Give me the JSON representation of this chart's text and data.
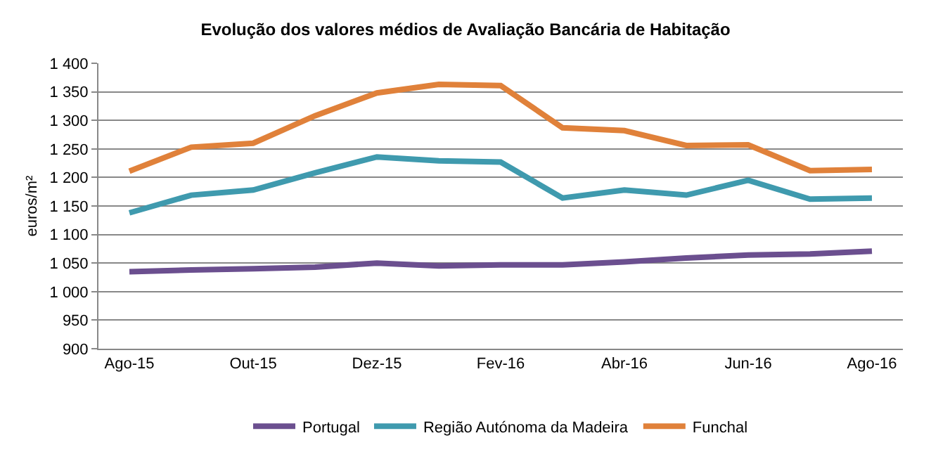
{
  "chart_data": {
    "type": "line",
    "title": "Evolução dos valores médios de Avaliação Bancária de Habitação",
    "ylabel": "euros/m²",
    "categories": [
      "Ago-15",
      null,
      "Out-15",
      null,
      "Dez-15",
      null,
      "Fev-16",
      null,
      "Abr-16",
      null,
      "Jun-16",
      null,
      "Ago-16"
    ],
    "series": [
      {
        "name": "Portugal",
        "color": "#6b4f8f",
        "values": [
          1035,
          1038,
          1040,
          1043,
          1050,
          1045,
          1047,
          1047,
          1052,
          1059,
          1064,
          1066,
          1071
        ]
      },
      {
        "name": "Região Autónoma da Madeira",
        "color": "#3f9aae",
        "values": [
          1138,
          1169,
          1178,
          1208,
          1236,
          1229,
          1227,
          1164,
          1178,
          1169,
          1195,
          1162,
          1164
        ]
      },
      {
        "name": "Funchal",
        "color": "#e0813a",
        "values": [
          1211,
          1253,
          1260,
          1308,
          1348,
          1363,
          1361,
          1287,
          1282,
          1256,
          1257,
          1212,
          1214
        ]
      }
    ],
    "ylim": [
      900,
      1400
    ],
    "yticks": [
      900,
      950,
      {
        "value": 1000,
        "label": "1 000"
      },
      {
        "value": 1050,
        "label": "1 050"
      },
      {
        "value": 1100,
        "label": "1 100"
      },
      {
        "value": 1150,
        "label": "1 150"
      },
      {
        "value": 1200,
        "label": "1 200"
      },
      {
        "value": 1250,
        "label": "1 250"
      },
      {
        "value": 1300,
        "label": "1 300"
      },
      {
        "value": 1350,
        "label": "1 350"
      },
      {
        "value": 1400,
        "label": "1 400"
      }
    ],
    "grid": "y",
    "legend": "bottom",
    "marker": "none",
    "line_style": "solid"
  }
}
